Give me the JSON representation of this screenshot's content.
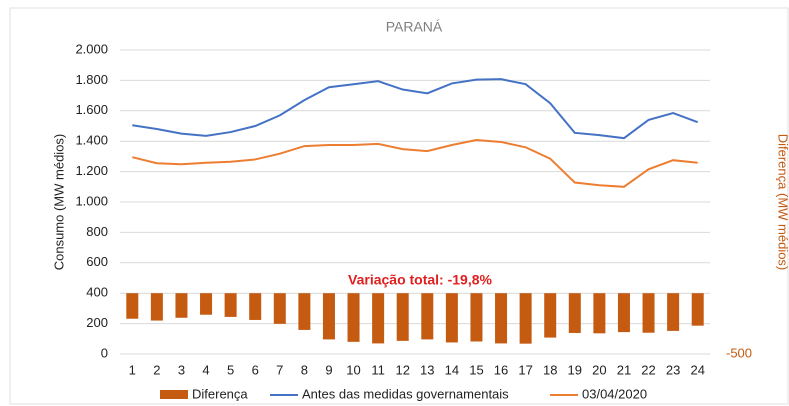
{
  "chart_data": {
    "type": "combo",
    "title": "PARANÁ",
    "y_label": "Consumo (MW médios)",
    "y2_label": "Diferença (MW médios)",
    "annotation": "Variação total: -19,8%",
    "categories": [
      "1",
      "2",
      "3",
      "4",
      "5",
      "6",
      "7",
      "8",
      "9",
      "10",
      "11",
      "12",
      "13",
      "14",
      "15",
      "16",
      "17",
      "18",
      "19",
      "20",
      "21",
      "22",
      "23",
      "24"
    ],
    "series": [
      {
        "name": "Diferença",
        "type": "bar",
        "axis": "y2",
        "color": "#c55a11",
        "values": [
          -210,
          -225,
          -202,
          -177,
          -195,
          -220,
          -252,
          -302,
          -380,
          -400,
          -413,
          -392,
          -380,
          -405,
          -397,
          -413,
          -415,
          -365,
          -327,
          -330,
          -320,
          -325,
          -310,
          -267
        ]
      },
      {
        "name": "Antes das medidas governamentais",
        "type": "line",
        "color": "#4472c4",
        "values": [
          1505,
          1480,
          1450,
          1435,
          1460,
          1500,
          1570,
          1670,
          1755,
          1775,
          1795,
          1740,
          1715,
          1780,
          1805,
          1808,
          1775,
          1650,
          1455,
          1440,
          1420,
          1540,
          1585,
          1525
        ]
      },
      {
        "name": "03/04/2020",
        "type": "line",
        "color": "#ed7d31",
        "values": [
          1295,
          1255,
          1248,
          1258,
          1265,
          1280,
          1318,
          1368,
          1375,
          1375,
          1382,
          1348,
          1335,
          1375,
          1408,
          1395,
          1360,
          1285,
          1128,
          1110,
          1100,
          1215,
          1275,
          1258
        ]
      }
    ],
    "ylim": [
      0,
      2000
    ],
    "yticks": [
      0,
      200,
      400,
      600,
      800,
      {
        "value": 1000,
        "label": "1.000"
      },
      {
        "value": 1200,
        "label": "1.200"
      },
      {
        "value": 1400,
        "label": "1.400"
      },
      {
        "value": 1600,
        "label": "1.600"
      },
      {
        "value": 1800,
        "label": "1.800"
      },
      {
        "value": 2000,
        "label": "2.000"
      }
    ],
    "y2lim": [
      -500,
      2000
    ],
    "y2ticks": [
      -500
    ],
    "grid": true
  }
}
